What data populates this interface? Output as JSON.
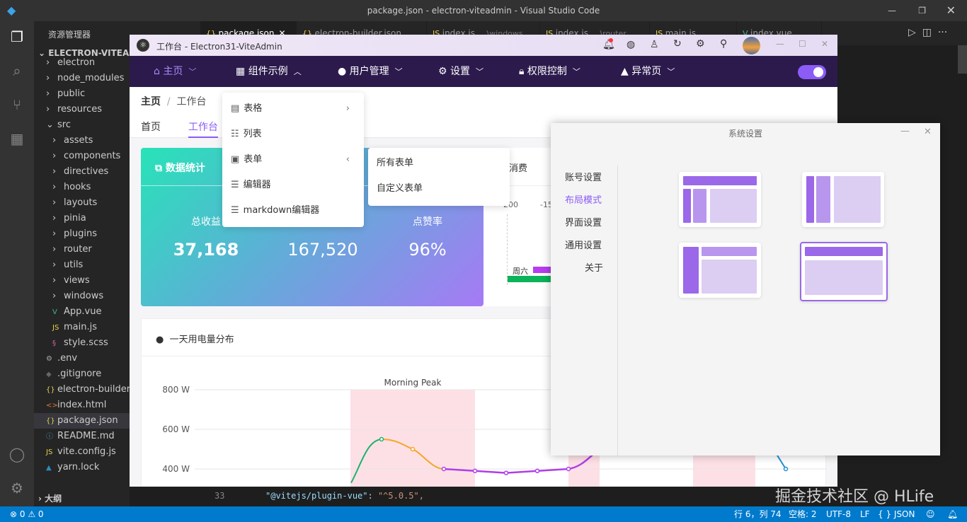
{
  "window": {
    "title": "package.json - electron-viteadmin - Visual Studio Code"
  },
  "explorer": {
    "header": "资源管理器",
    "root": "ELECTRON-VITEADMIN",
    "items": [
      {
        "label": "electron",
        "kind": "folder",
        "indent": 1
      },
      {
        "label": "node_modules",
        "kind": "folder",
        "indent": 1
      },
      {
        "label": "public",
        "kind": "folder",
        "indent": 1
      },
      {
        "label": "resources",
        "kind": "folder",
        "indent": 1
      },
      {
        "label": "src",
        "kind": "folder-open",
        "indent": 1
      },
      {
        "label": "assets",
        "kind": "folder",
        "indent": 2
      },
      {
        "label": "components",
        "kind": "folder",
        "indent": 2
      },
      {
        "label": "directives",
        "kind": "folder",
        "indent": 2
      },
      {
        "label": "hooks",
        "kind": "folder",
        "indent": 2
      },
      {
        "label": "layouts",
        "kind": "folder",
        "indent": 2
      },
      {
        "label": "pinia",
        "kind": "folder",
        "indent": 2
      },
      {
        "label": "plugins",
        "kind": "folder",
        "indent": 2
      },
      {
        "label": "router",
        "kind": "folder",
        "indent": 2
      },
      {
        "label": "utils",
        "kind": "folder",
        "indent": 2
      },
      {
        "label": "views",
        "kind": "folder",
        "indent": 2
      },
      {
        "label": "windows",
        "kind": "folder",
        "indent": 2
      },
      {
        "label": "App.vue",
        "kind": "vue",
        "indent": 2
      },
      {
        "label": "main.js",
        "kind": "js",
        "indent": 2
      },
      {
        "label": "style.scss",
        "kind": "scss",
        "indent": 2
      },
      {
        "label": ".env",
        "kind": "gear",
        "indent": 1
      },
      {
        "label": ".gitignore",
        "kind": "git",
        "indent": 1
      },
      {
        "label": "electron-builder.json",
        "kind": "json",
        "indent": 1
      },
      {
        "label": "index.html",
        "kind": "html",
        "indent": 1
      },
      {
        "label": "package.json",
        "kind": "json",
        "indent": 1,
        "selected": true
      },
      {
        "label": "README.md",
        "kind": "info",
        "indent": 1
      },
      {
        "label": "vite.config.js",
        "kind": "js",
        "indent": 1
      },
      {
        "label": "yarn.lock",
        "kind": "yarn",
        "indent": 1
      }
    ],
    "outline": "大纲"
  },
  "editor_tabs": [
    {
      "label": "package.json",
      "icon": "{}",
      "active": true
    },
    {
      "label": "electron-builder.json",
      "icon": "{}"
    },
    {
      "label": "index.js",
      "desc": "...\\windows",
      "icon": "JS"
    },
    {
      "label": "index.js",
      "desc": "...\\router",
      "icon": "JS"
    },
    {
      "label": "main.js",
      "icon": "JS"
    },
    {
      "label": "index.vue",
      "icon": "V"
    }
  ],
  "editor": {
    "line_number": "33",
    "code_key": "\"@vitejs/plugin-vue\"",
    "code_colon": ": ",
    "code_value": "\"^5.0.5\","
  },
  "app": {
    "title": "工作台 - Electron31-ViteAdmin",
    "nav": [
      {
        "label": "主页",
        "icon": "home-icon",
        "active": true
      },
      {
        "label": "组件示例",
        "icon": "grid-icon",
        "open": true
      },
      {
        "label": "用户管理",
        "icon": "user-icon"
      },
      {
        "label": "设置",
        "icon": "gear-icon"
      },
      {
        "label": "权限控制",
        "icon": "lock-icon"
      },
      {
        "label": "异常页",
        "icon": "warning-icon"
      }
    ],
    "breadcrumb": [
      "主页",
      "工作台"
    ],
    "page_tabs": [
      "首页",
      "工作台"
    ],
    "dropdown": [
      {
        "label": "表格",
        "icon": "table-icon",
        "arrow": "›"
      },
      {
        "label": "列表",
        "icon": "list-icon"
      },
      {
        "label": "表单",
        "icon": "form-icon",
        "arrow": "‹"
      },
      {
        "label": "编辑器",
        "icon": "editor-icon"
      },
      {
        "label": "markdown编辑器",
        "icon": "markdown-icon"
      }
    ],
    "submenu": [
      "所有表单",
      "自定义表单"
    ],
    "stats": {
      "title": "数据统计",
      "items": [
        {
          "label": "总收益",
          "value": "37,168"
        },
        {
          "label": "",
          "value": "167,520"
        },
        {
          "label": "点赞率",
          "value": "96%"
        }
      ]
    },
    "side_card": {
      "title_partial": "消费",
      "axis_partial": [
        "-200",
        "-15"
      ],
      "row_label": "周六"
    },
    "chart_card": {
      "title": "一天用电量分布"
    }
  },
  "chart_data": {
    "type": "line",
    "title": "一天用电量分布",
    "ylabel": "",
    "yticks": [
      "400 W",
      "600 W",
      "800 W"
    ],
    "ylim": [
      300,
      800
    ],
    "mark_area": [
      {
        "name": "Morning Peak"
      },
      {
        "name": ""
      },
      {
        "name": ""
      }
    ],
    "visible_points": [
      550,
      500,
      400,
      390,
      380,
      390,
      400
    ],
    "end_point": 400,
    "colors": {
      "rise": "#19b36b",
      "fall": "#f5a623",
      "low": "#b03ee8",
      "end": "#1e8fd8",
      "band": "#fde0e6"
    }
  },
  "settings": {
    "title": "系统设置",
    "menu": [
      "账号设置",
      "布局模式",
      "界面设置",
      "通用设置",
      "关于"
    ],
    "active": 1,
    "layouts_selected": 3
  },
  "status": {
    "errors": "0",
    "warnings": "0",
    "position": "行 6，列 74",
    "spaces": "空格: 2",
    "encoding": "UTF-8",
    "eol": "LF",
    "language": "{ } JSON"
  },
  "watermark": "掘金技术社区 @ HLife",
  "colors": {
    "vscode_blue": "#007acc",
    "nav_bg": "#2c1a4d",
    "accent": "#8b5cf6"
  }
}
